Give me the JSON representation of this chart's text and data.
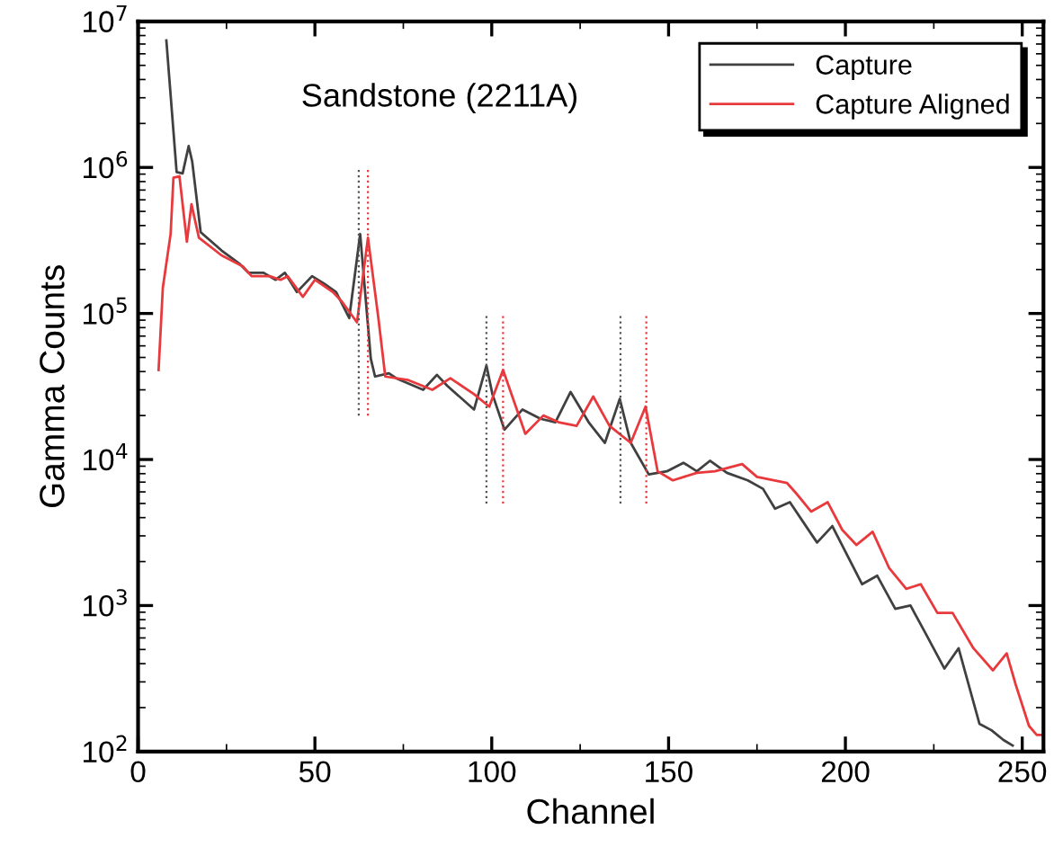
{
  "chart_data": {
    "type": "line",
    "xlabel": "Channel",
    "ylabel": "Gamma Counts",
    "log": "y",
    "annotations": [
      "Sandstone (2211A)"
    ],
    "xlim": [
      0,
      256
    ],
    "xticks": [
      0,
      50,
      100,
      150,
      200,
      250
    ],
    "ylim": [
      100,
      10000000
    ],
    "yticks": [
      {
        "value": 100,
        "label": "10$^{2}$"
      },
      {
        "value": 1000,
        "label": "10$^{3}$"
      },
      {
        "value": 10000,
        "label": "10$^{4}$"
      },
      {
        "value": 100000,
        "label": "10$^{5}$"
      },
      {
        "value": 1000000,
        "label": "10$^{6}$"
      },
      {
        "value": 10000000,
        "label": "10$^{7}$"
      }
    ],
    "grid": false,
    "legend": "top right",
    "marker": "none",
    "line_style": "solid",
    "series": [
      {
        "name": "Capture",
        "color": "#404040",
        "x": [
          8,
          10.9,
          12.6,
          14.3,
          15.3,
          17.7,
          23.6,
          28.6,
          31.2,
          35.5,
          38.9,
          41.5,
          44.9,
          49.2,
          52.6,
          56,
          59.7,
          62.8,
          65.8,
          67,
          70.9,
          73,
          80.6,
          84.5,
          87.4,
          95,
          98.5,
          100.2,
          103.6,
          108.7,
          113.8,
          118,
          122.3,
          127.4,
          132,
          136.2,
          139.3,
          144.4,
          149.5,
          154.2,
          158,
          161.7,
          166.5,
          172.4,
          176.7,
          180.1,
          184.3,
          190.3,
          192,
          196.3,
          204.7,
          209,
          214.1,
          218.4,
          222.6,
          228,
          232,
          237.9,
          241.3,
          244.7,
          247.3
        ],
        "values": [
          7400000,
          930000,
          910000,
          1400000,
          1100000,
          360000,
          270000,
          220000,
          190000,
          190000,
          170000,
          190000,
          140000,
          180000,
          160000,
          140000,
          93000,
          350000,
          49000,
          37000,
          39000,
          36000,
          30000,
          38000,
          32000,
          22000,
          44000,
          28000,
          16000,
          22000,
          19000,
          18000,
          29000,
          18000,
          13000,
          26000,
          13000,
          7900,
          8300,
          9500,
          8300,
          9800,
          8100,
          7200,
          6300,
          4600,
          5100,
          3100,
          2700,
          3500,
          1400,
          1600,
          950,
          1000,
          650,
          370,
          510,
          155,
          140,
          120,
          110
        ]
      },
      {
        "name": "Capture Aligned",
        "color": "#e8393d",
        "x": [
          5.8,
          7,
          9.2,
          10,
          11.7,
          13.8,
          15.1,
          17.2,
          23.6,
          29.6,
          32.1,
          37.2,
          40.3,
          42.3,
          46.6,
          50,
          55.1,
          57.7,
          61.9,
          65,
          67.9,
          69.9,
          76.4,
          83.2,
          88.3,
          95,
          99.3,
          103.2,
          109.5,
          114.6,
          118.9,
          124,
          128.7,
          133.3,
          139.3,
          143.5,
          146.9,
          151.2,
          158,
          163.1,
          170.8,
          175,
          183.5,
          186,
          190.3,
          195,
          199.1,
          203.1,
          207.7,
          212.4,
          217.2,
          221.3,
          226,
          230.3,
          236.2,
          241.7,
          245.6,
          248.1,
          251.9,
          254.1,
          255.8
        ],
        "values": [
          41000,
          150000,
          350000,
          850000,
          870000,
          310000,
          560000,
          330000,
          250000,
          210000,
          180000,
          180000,
          170000,
          180000,
          130000,
          170000,
          140000,
          120000,
          87000,
          330000,
          95000,
          37000,
          35000,
          30000,
          36000,
          28000,
          23000,
          41000,
          15000,
          20000,
          18000,
          17000,
          27000,
          17000,
          13000,
          23000,
          8300,
          7200,
          8100,
          8300,
          9300,
          7600,
          6900,
          5900,
          4400,
          5100,
          3300,
          2600,
          3200,
          1800,
          1300,
          1400,
          890,
          890,
          510,
          360,
          470,
          290,
          150,
          130,
          130
        ]
      },
      {
        "color": "#555555",
        "line_style": "dotted",
        "x": [
          62.4,
          62.4
        ],
        "values": [
          20000,
          1000000
        ]
      },
      {
        "color": "#e8393d",
        "line_style": "dotted",
        "x": [
          65,
          65
        ],
        "values": [
          20000,
          1000000
        ]
      },
      {
        "color": "#555555",
        "line_style": "dotted",
        "x": [
          98.5,
          98.5
        ],
        "values": [
          5000,
          100000
        ]
      },
      {
        "color": "#e8393d",
        "line_style": "dotted",
        "x": [
          103.2,
          103.2
        ],
        "values": [
          5000,
          100000
        ]
      },
      {
        "color": "#555555",
        "line_style": "dotted",
        "x": [
          136.4,
          136.4
        ],
        "values": [
          5000,
          100000
        ]
      },
      {
        "color": "#e8393d",
        "line_style": "dotted",
        "x": [
          143.7,
          143.7
        ],
        "values": [
          5000,
          100000
        ]
      }
    ]
  }
}
